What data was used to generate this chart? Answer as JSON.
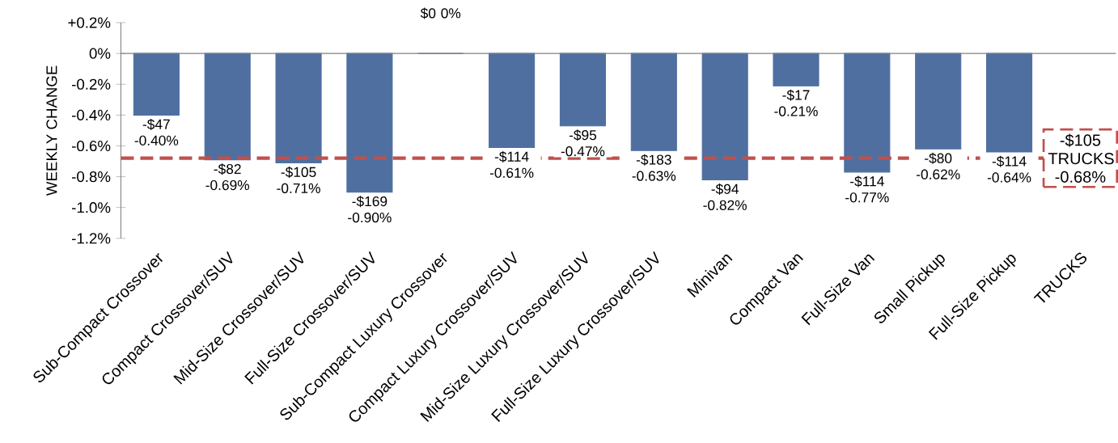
{
  "chart_data": {
    "type": "bar",
    "ylabel": "WEEKLY CHANGE",
    "categories": [
      "Sub-Compact Crossover",
      "Compact Crossover/SUV",
      "Mid-Size Crossover/SUV",
      "Full-Size Crossover/SUV",
      "Sub-Compact Luxury Crossover",
      "Compact Luxury Crossover/SUV",
      "Mid-Size Luxury Crossover/SUV",
      "Full-Size Luxury Crossover/SUV",
      "Minivan",
      "Compact Van",
      "Full-Size Van",
      "Small Pickup",
      "Full-Size Pickup",
      "TRUCKS"
    ],
    "values": [
      -0.4,
      -0.69,
      -0.71,
      -0.9,
      0,
      -0.61,
      -0.47,
      -0.63,
      -0.82,
      -0.21,
      -0.77,
      -0.62,
      -0.64,
      null
    ],
    "value_labels": [
      "-$47 -0.40%",
      "-$82 -0.69%",
      "-$105 -0.71%",
      "-$169 -0.90%",
      "$0 0%",
      "-$114 -0.61%",
      "-$95 -0.47%",
      "-$183 -0.63%",
      "-$94 -0.82%",
      "-$17 -0.21%",
      "-$114 -0.77%",
      "-$80 -0.62%",
      "-$114 -0.64%",
      null
    ],
    "color": "#4f6fa0",
    "ylim": [
      -1.2,
      0.2
    ],
    "yticks": [
      {
        "value": 0.2,
        "label": "+0.2%"
      },
      {
        "value": 0,
        "label": "0%"
      },
      {
        "value": -0.2,
        "label": "-0.2%"
      },
      {
        "value": -0.4,
        "label": "-0.4%"
      },
      {
        "value": -0.6,
        "label": "-0.6%"
      },
      {
        "value": -0.8,
        "label": "-0.8%"
      },
      {
        "value": -1.0,
        "label": "-1.0%"
      },
      {
        "value": -1.2,
        "label": "-1.2%"
      }
    ],
    "ref_lines": [
      {
        "axis": "y",
        "value": -0.68,
        "label": "-$105 TRUCKS -0.68%",
        "color": "#c0504d",
        "line_style": "dashed"
      }
    ]
  }
}
